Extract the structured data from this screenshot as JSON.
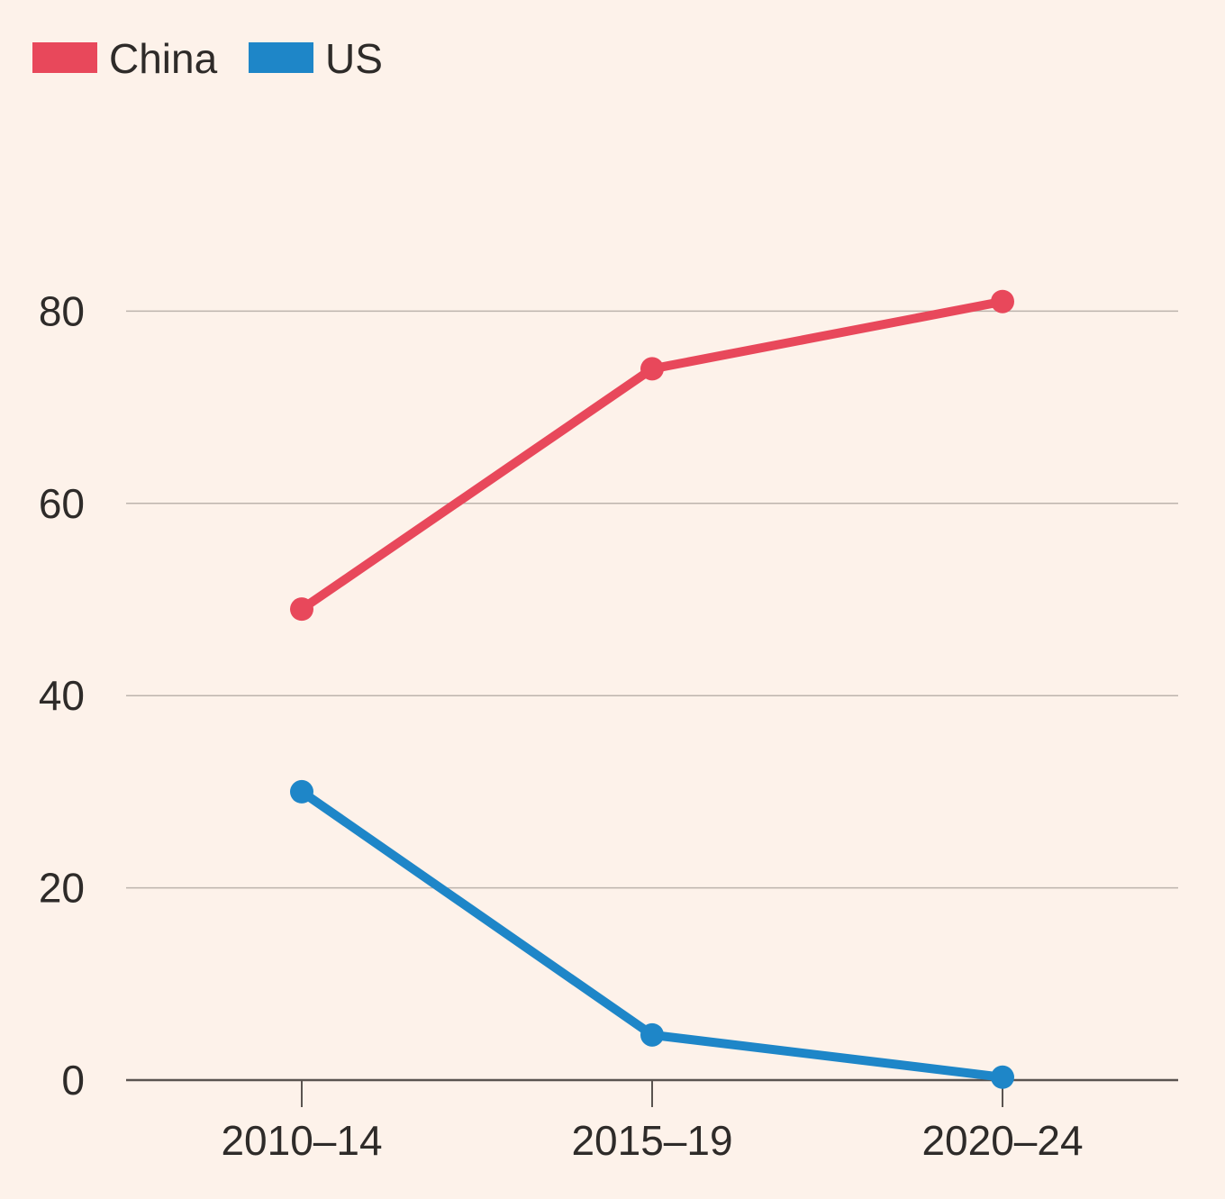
{
  "chart_data": {
    "type": "line",
    "categories": [
      "2010–14",
      "2015–19",
      "2020–24"
    ],
    "series": [
      {
        "name": "China",
        "values": [
          49,
          74,
          81
        ],
        "color": "#e8485b"
      },
      {
        "name": "US",
        "values": [
          30,
          4.7,
          0.3
        ],
        "color": "#1e86c8"
      }
    ],
    "yticks": [
      0,
      20,
      40,
      60,
      80
    ],
    "ylim": [
      0,
      100
    ],
    "grid": true,
    "legend_position": "top-left",
    "background_color": "#fdf2ea",
    "gridline_color": "#bdb4ad",
    "axis_color": "#5a5450",
    "text_color": "#2e2b29"
  }
}
